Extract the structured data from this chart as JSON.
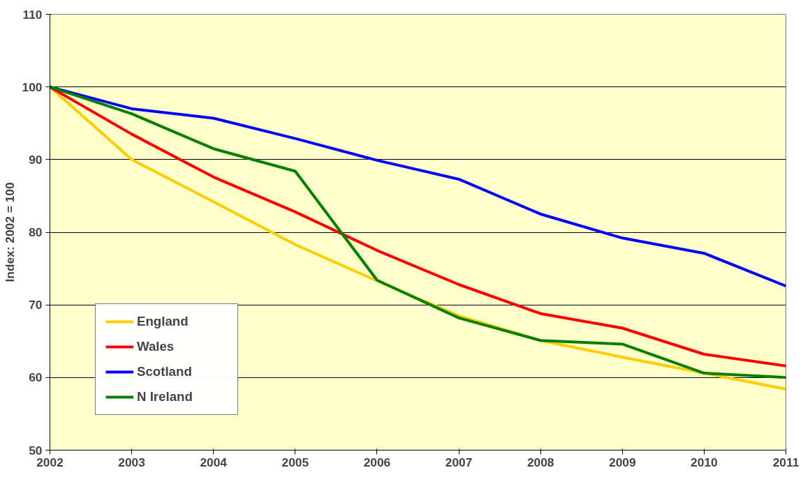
{
  "chart_data": {
    "type": "line",
    "ylabel": "Index: 2002 = 100",
    "x": [
      2002,
      2003,
      2004,
      2005,
      2006,
      2007,
      2008,
      2009,
      2010,
      2011
    ],
    "xlim": [
      2002,
      2011
    ],
    "xticks": [
      2002,
      2003,
      2004,
      2005,
      2006,
      2007,
      2008,
      2009,
      2010,
      2011
    ],
    "ylim": [
      50,
      110
    ],
    "yticks": [
      50,
      60,
      70,
      80,
      90,
      100,
      110
    ],
    "grid": "y",
    "legend": "bottom left",
    "marker": "none",
    "line_style": "solid",
    "series": [
      {
        "name": "England",
        "color": "#ffcc00",
        "values": [
          100,
          90.0,
          84.2,
          78.3,
          73.3,
          68.5,
          65.1,
          62.8,
          60.6,
          58.4
        ]
      },
      {
        "name": "Wales",
        "color": "#ff0000",
        "values": [
          100,
          93.5,
          87.6,
          82.8,
          77.5,
          72.8,
          68.8,
          66.8,
          63.2,
          61.6
        ]
      },
      {
        "name": "Scotland",
        "color": "#0000ff",
        "values": [
          100,
          97.0,
          95.7,
          92.9,
          89.9,
          87.3,
          82.5,
          79.2,
          77.1,
          72.6
        ]
      },
      {
        "name": "N Ireland",
        "color": "#008000",
        "values": [
          100,
          96.3,
          91.5,
          88.4,
          73.4,
          68.2,
          65.1,
          64.6,
          60.6,
          60.0
        ]
      }
    ]
  }
}
